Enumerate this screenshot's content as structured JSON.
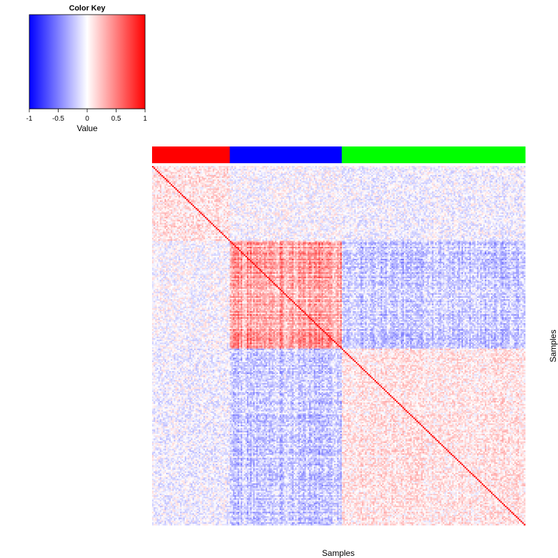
{
  "chart_data": {
    "type": "heatmap",
    "xlabel": "Samples",
    "ylabel": "Samples",
    "color_key": {
      "title": "Color Key",
      "label": "Value",
      "range": [
        -1,
        1
      ],
      "ticks": [
        "-1",
        "-0.5",
        "0",
        "0.5",
        "1"
      ],
      "colors": {
        "low": "#0000ff",
        "mid": "#ffffff",
        "high": "#ff0000"
      }
    },
    "groups": [
      {
        "color": "#ff0000",
        "fraction": 0.21
      },
      {
        "color": "#0000ff",
        "fraction": 0.3
      },
      {
        "color": "#00ff00",
        "fraction": 0.49
      }
    ],
    "n_samples": 240,
    "block_correlation": [
      [
        0.1,
        -0.02,
        -0.05
      ],
      [
        -0.02,
        0.35,
        -0.2
      ],
      [
        -0.05,
        -0.2,
        0.1
      ]
    ],
    "diagonal_value": 1
  }
}
